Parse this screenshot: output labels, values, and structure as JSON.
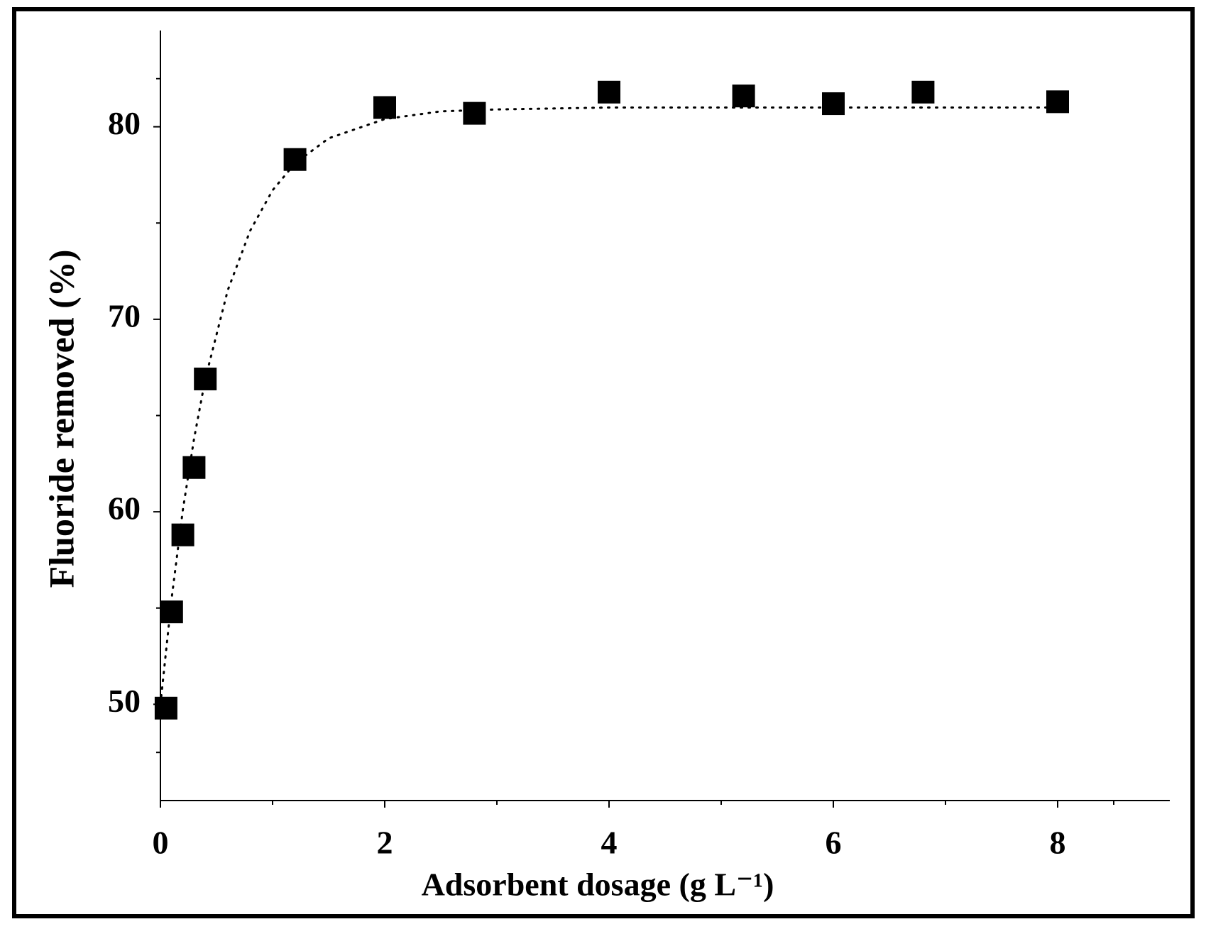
{
  "chart_data": {
    "type": "scatter",
    "xlabel": "Adsorbent dosage (g L⁻¹)",
    "ylabel": "Fluoride removed (%)",
    "x": [
      0.05,
      0.1,
      0.2,
      0.3,
      0.4,
      1.2,
      2,
      2.8,
      4,
      5.2,
      6,
      6.8,
      8
    ],
    "values": [
      49.8,
      54.8,
      58.8,
      62.3,
      66.9,
      78.3,
      81.0,
      80.7,
      81.8,
      81.6,
      81.2,
      81.8,
      81.3
    ],
    "color": "#000000",
    "fit": {
      "x": [
        0,
        0.1,
        0.2,
        0.3,
        0.4,
        0.6,
        0.8,
        1,
        1.2,
        1.5,
        2,
        2.5,
        3,
        4,
        5,
        6,
        7,
        8
      ],
      "values": [
        50.0,
        55.5,
        60.1,
        63.8,
        66.9,
        71.5,
        74.6,
        76.7,
        78.1,
        79.4,
        80.4,
        80.8,
        80.9,
        81.0,
        81.0,
        81.0,
        81.0,
        81.0
      ],
      "style": "dotted"
    },
    "xlim": [
      0,
      9
    ],
    "xticks": [
      0,
      2,
      4,
      6,
      8
    ],
    "ylim": [
      45,
      85
    ],
    "yticks": [
      50,
      60,
      70,
      80
    ],
    "grid": false
  }
}
